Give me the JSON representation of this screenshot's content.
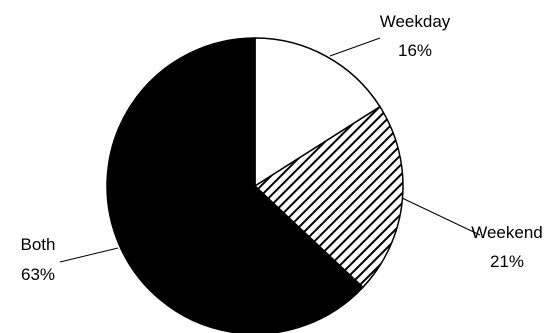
{
  "chart_data": {
    "type": "pie",
    "title": "",
    "slices": [
      {
        "name": "Weekday",
        "value": 16,
        "value_label": "16%",
        "fill": "#ffffff",
        "pattern": "none"
      },
      {
        "name": "Weekend",
        "value": 21,
        "value_label": "21%",
        "fill": "#ffffff",
        "pattern": "diagonal-hatch"
      },
      {
        "name": "Both",
        "value": 63,
        "value_label": "63%",
        "fill": "#000000",
        "pattern": "none"
      }
    ],
    "start_angle": "12 o'clock",
    "direction": "clockwise",
    "legend": "none",
    "labels": "outside with leader lines"
  }
}
